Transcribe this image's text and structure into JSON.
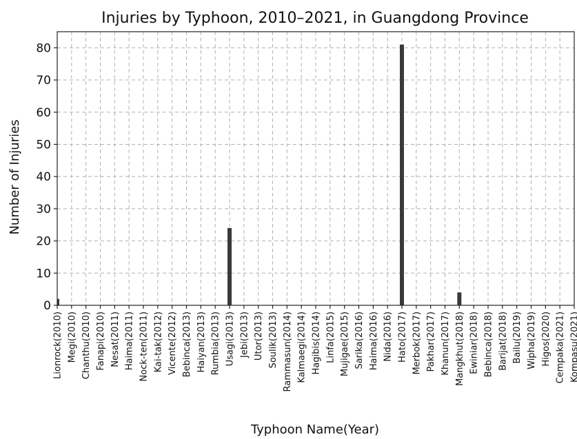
{
  "chart_data": {
    "type": "bar",
    "title": "Injuries by Typhoon, 2010–2021, in Guangdong Province",
    "xlabel": "Typhoon Name(Year)",
    "ylabel": "Number of Injuries",
    "ylim": [
      0,
      85
    ],
    "yticks": [
      0,
      10,
      20,
      30,
      40,
      50,
      60,
      70,
      80
    ],
    "grid": true,
    "bar_color": "#3a3a3a",
    "categories": [
      "Lionrock(2010)",
      "Megi(2010)",
      "Chanthu(2010)",
      "Fanapi(2010)",
      "Nesat(2011)",
      "Haima(2011)",
      "Nock-ten(2011)",
      "Kai-tak(2012)",
      "Vicente(2012)",
      "Bebinca(2013)",
      "Haiyan(2013)",
      "Rumbia(2013)",
      "Usagi(2013)",
      "Jebi(2013)",
      "Utor(2013)",
      "Soulik(2013)",
      "Rammasun(2014)",
      "Kalmaegi(2014)",
      "Hagibis(2014)",
      "Linfa(2015)",
      "Mujigae(2015)",
      "Sarika(2016)",
      "Haima(2016)",
      "Nida(2016)",
      "Hato(2017)",
      "Merbok(2017)",
      "Pakhar(2017)",
      "Khanun(2017)",
      "Mangkhut(2018)",
      "Ewiniar(2018)",
      "Bebinca(2018)",
      "Barijat(2018)",
      "Bailu(2019)",
      "Wipha(2019)",
      "Higos(2020)",
      "Cempaka(2021)",
      "Kompasu(2021)"
    ],
    "values": [
      2,
      0,
      0,
      0,
      0,
      0,
      0,
      0,
      0,
      0,
      0,
      0,
      24,
      0,
      0,
      0,
      0,
      0,
      0,
      0,
      0,
      0,
      0,
      0,
      81,
      0,
      0,
      0,
      4,
      0,
      0,
      0,
      0,
      0,
      0,
      0,
      0
    ]
  }
}
